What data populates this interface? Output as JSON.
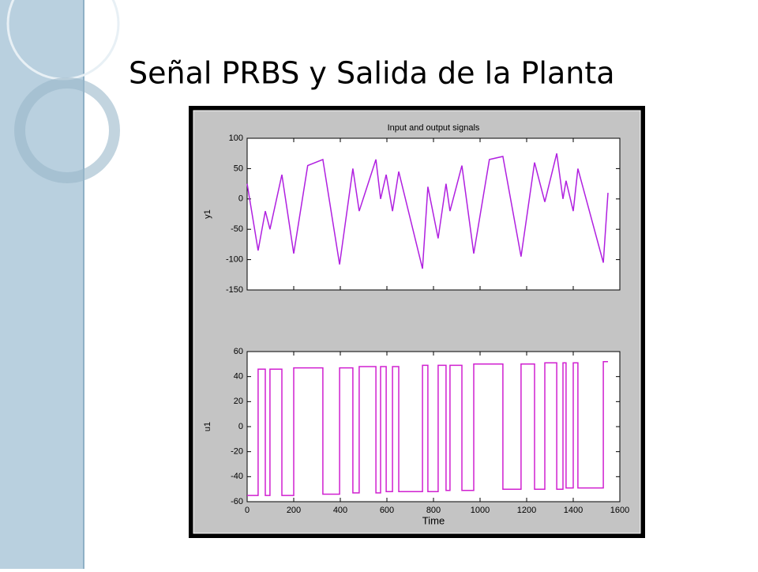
{
  "slide_title": "Señal PRBS y Salida de la Planta",
  "chart_data": [
    {
      "type": "line",
      "title": "Input and output signals",
      "y_label": "y1",
      "x": [
        0,
        47,
        78,
        98,
        149,
        200,
        260,
        325,
        397,
        454,
        481,
        553,
        573,
        597,
        624,
        651,
        753,
        776,
        820,
        854,
        871,
        922,
        973,
        1040,
        1098,
        1176,
        1234,
        1278,
        1329,
        1356,
        1369,
        1400,
        1420,
        1529,
        1549
      ],
      "values": [
        25,
        -85,
        -20,
        -50,
        40,
        -90,
        55,
        65,
        -108,
        50,
        -20,
        65,
        0,
        40,
        -20,
        45,
        -115,
        20,
        -65,
        25,
        -20,
        55,
        -90,
        65,
        70,
        -95,
        60,
        -5,
        75,
        0,
        30,
        -20,
        50,
        -105,
        10
      ],
      "color": "#b020e0",
      "xlim": [
        0,
        1600
      ],
      "xticks": [
        0,
        200,
        400,
        600,
        800,
        1000,
        1200,
        1400,
        1600
      ],
      "ylim": [
        -150,
        100
      ],
      "yticks": [
        -150,
        -100,
        -50,
        0,
        50,
        100
      ]
    },
    {
      "type": "line",
      "y_label": "u1",
      "x_label": "Time",
      "x": [
        0,
        47,
        47,
        78,
        78,
        98,
        98,
        149,
        149,
        200,
        200,
        325,
        325,
        397,
        397,
        454,
        454,
        481,
        481,
        553,
        553,
        573,
        573,
        597,
        597,
        624,
        624,
        651,
        651,
        753,
        753,
        776,
        776,
        820,
        820,
        854,
        854,
        871,
        871,
        922,
        922,
        973,
        973,
        1098,
        1098,
        1176,
        1176,
        1234,
        1234,
        1278,
        1278,
        1329,
        1329,
        1356,
        1356,
        1369,
        1369,
        1400,
        1400,
        1420,
        1420,
        1529,
        1529,
        1549
      ],
      "values": [
        -55,
        -55,
        46,
        46,
        -55,
        -55,
        46,
        46,
        -55,
        -55,
        47,
        47,
        -54,
        -54,
        47,
        47,
        -53,
        -53,
        48,
        48,
        -53,
        -53,
        48,
        48,
        -52,
        -52,
        48,
        48,
        -52,
        -52,
        49,
        49,
        -52,
        -52,
        49,
        49,
        -51,
        -51,
        49,
        49,
        -51,
        -51,
        50,
        50,
        -50,
        -50,
        50,
        50,
        -50,
        -50,
        51,
        51,
        -50,
        -50,
        51,
        51,
        -49,
        -49,
        51,
        51,
        -49,
        -49,
        52,
        52
      ],
      "color": "#d020d0",
      "xlim": [
        0,
        1600
      ],
      "xticks": [
        0,
        200,
        400,
        600,
        800,
        1000,
        1200,
        1400,
        1600
      ],
      "ylim": [
        -60,
        60
      ],
      "yticks": [
        -60,
        -40,
        -20,
        0,
        20,
        40,
        60
      ]
    }
  ]
}
